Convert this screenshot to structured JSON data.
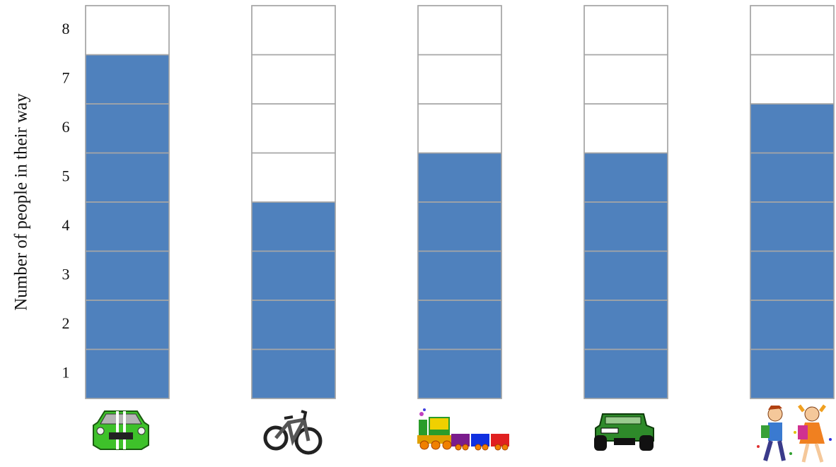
{
  "chart_data": {
    "type": "pictograph_bar",
    "y_label": "Number of people in their way",
    "categories": [
      null,
      null,
      null,
      null,
      null
    ],
    "values": [
      7,
      4,
      5,
      5,
      6
    ],
    "color": "#4f81bd",
    "ylim": [
      0.5,
      8.5
    ],
    "yticks": [
      1,
      2,
      3,
      4,
      5,
      6,
      7,
      8
    ],
    "grid": true
  }
}
